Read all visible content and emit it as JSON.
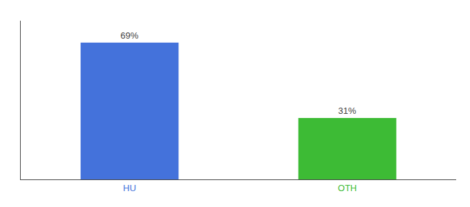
{
  "chart_data": {
    "type": "bar",
    "categories": [
      "HU",
      "OTH"
    ],
    "values": [
      69,
      31
    ],
    "value_labels": [
      "69%",
      "31%"
    ],
    "colors": [
      "#4472db",
      "#3dbb35"
    ],
    "data_labels": true,
    "ylim": [
      0,
      80
    ],
    "tick_labels": "x",
    "grid": false
  }
}
